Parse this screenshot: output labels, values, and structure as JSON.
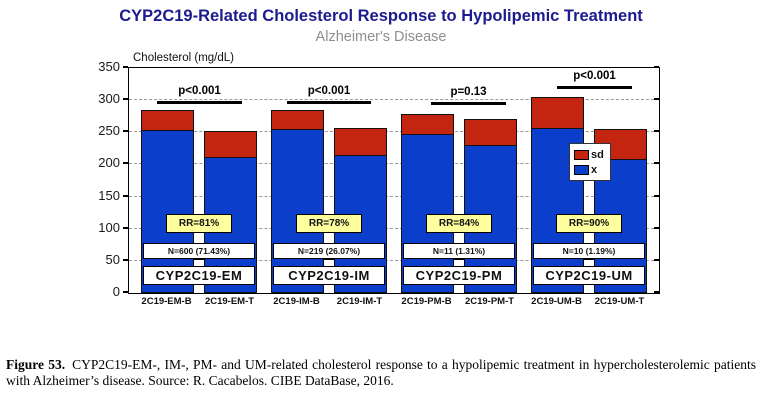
{
  "chart_data": {
    "type": "bar",
    "stacked": true,
    "title": "CYP2C19-Related Cholesterol Response to Hypolipemic Treatment",
    "subtitle": "Alzheimer's Disease",
    "ylabel": "Cholesterol (mg/dL)",
    "ylim": [
      0,
      350
    ],
    "yticks": [
      0,
      50,
      100,
      150,
      200,
      250,
      300,
      350
    ],
    "grid": "horizontal-dashed",
    "legend_position": "inside-right",
    "categories": [
      "2C19-EM-B",
      "2C19-EM-T",
      "2C19-IM-B",
      "2C19-IM-T",
      "2C19-PM-B",
      "2C19-PM-T",
      "2C19-UM-B",
      "2C19-UM-T"
    ],
    "series": [
      {
        "name": "x",
        "color": "#0a3ecb",
        "values": [
          254,
          211,
          255,
          214,
          248,
          230,
          256,
          209
        ]
      },
      {
        "name": "sd",
        "color": "#c32511",
        "values": [
          31,
          41,
          30,
          42,
          31,
          40,
          48,
          46
        ]
      }
    ],
    "groups": [
      {
        "label": "CYP2C19-EM",
        "rr": "RR=81%",
        "n": "N=600 (71.43%)",
        "p": "p<0.001"
      },
      {
        "label": "CYP2C19-IM",
        "rr": "RR=78%",
        "n": "N=219 (26.07%)",
        "p": "p<0.001"
      },
      {
        "label": "CYP2C19-PM",
        "rr": "RR=84%",
        "n": "N=11 (1.31%)",
        "p": "p=0.13"
      },
      {
        "label": "CYP2C19-UM",
        "rr": "RR=90%",
        "n": "N=10 (1.19%)",
        "p": "p<0.001"
      }
    ],
    "legend": [
      {
        "label": "sd",
        "color": "#c32511"
      },
      {
        "label": "x",
        "color": "#0a3ecb"
      }
    ],
    "colors": {
      "title": "#1b1b8e",
      "subtitle": "#8e8e8e",
      "rr_badge": "#ffff9e",
      "bar_x": "#0a3ecb",
      "bar_sd": "#c32511"
    }
  },
  "caption": {
    "label": "Figure 53.",
    "text": "CYP2C19-EM-, IM-, PM- and UM-related cholesterol response to a hypolipemic treatment in hypercholesterolemic patients with Alzheimer’s disease. Source: R. Cacabelos. CIBE DataBase, 2016."
  }
}
